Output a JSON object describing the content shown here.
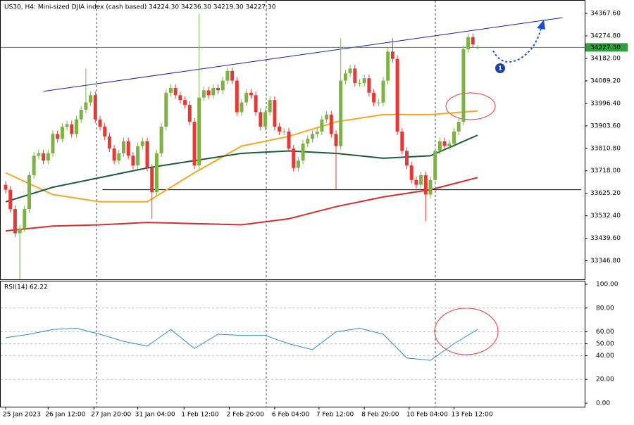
{
  "chart_data": {
    "type": "candlestick",
    "title": "US30, H4:  Mini-sized DJIA index (cash based)  34224.30 34236.30 34219.30 34227.30",
    "open": [
      33660,
      33640,
      33560,
      33460,
      33480,
      33560,
      33700,
      33780,
      33790,
      33760,
      33790,
      33870,
      33850,
      33900,
      33910,
      33870,
      33930,
      33970,
      34000,
      34030,
      33930,
      33900,
      33860,
      33810,
      33760,
      33790,
      33840,
      33780,
      33740,
      33820,
      33840,
      33730,
      33630,
      33790,
      33900,
      34040,
      34060,
      34030,
      34010,
      33990,
      33920,
      33740,
      34020,
      34050,
      34030,
      34060,
      34050,
      34090,
      34130,
      34090,
      33960,
      34000,
      34040,
      34030,
      33960,
      33900,
      33960,
      34010,
      33900,
      33880,
      33880,
      33810,
      33730,
      33760,
      33830,
      33850,
      33870,
      33880,
      33930,
      33950,
      33870,
      33820,
      34090,
      34120,
      34140,
      34080,
      34080,
      34100,
      34040,
      34000,
      34000,
      34090,
      34210,
      34180,
      33880,
      33800,
      33740,
      33680,
      33660,
      33700,
      33620,
      33680,
      33800,
      33840,
      33820,
      33830,
      33880,
      33920,
      34220,
      34270,
      34224.3
    ],
    "high": [
      33675,
      33655,
      33575,
      33495,
      33575,
      33715,
      33795,
      33805,
      33805,
      33805,
      33885,
      33885,
      33915,
      33925,
      33925,
      33945,
      33985,
      34140,
      34045,
      34045,
      33945,
      33915,
      33875,
      33825,
      33805,
      33855,
      33855,
      33795,
      33835,
      33855,
      33855,
      33745,
      33805,
      33915,
      34055,
      34075,
      34075,
      34045,
      34025,
      34005,
      33935,
      34367,
      34065,
      34065,
      34075,
      34075,
      34105,
      34145,
      34145,
      34105,
      34015,
      34055,
      34055,
      34045,
      33975,
      33975,
      34025,
      34025,
      33915,
      33895,
      33895,
      33825,
      33775,
      33845,
      33865,
      33885,
      33895,
      33945,
      33965,
      33965,
      33885,
      34265,
      34135,
      34155,
      34155,
      34095,
      34115,
      34115,
      34055,
      34015,
      34105,
      34225,
      34265,
      34195,
      33895,
      33815,
      33755,
      33695,
      33715,
      33715,
      33695,
      33815,
      33855,
      33855,
      33845,
      33895,
      33935,
      34235,
      34285,
      34285,
      34236.3
    ],
    "low": [
      33625,
      33545,
      33445,
      33270,
      33465,
      33545,
      33685,
      33765,
      33745,
      33745,
      33775,
      33835,
      33835,
      33885,
      33855,
      33855,
      33915,
      33955,
      33985,
      33915,
      33885,
      33845,
      33795,
      33745,
      33745,
      33775,
      33765,
      33725,
      33725,
      33805,
      33715,
      33520,
      33615,
      33775,
      33885,
      34025,
      34015,
      33995,
      33975,
      33905,
      33725,
      33725,
      34005,
      34015,
      34015,
      34035,
      34035,
      34075,
      34075,
      33945,
      33945,
      33985,
      34015,
      33945,
      33885,
      33885,
      33945,
      33885,
      33865,
      33865,
      33795,
      33715,
      33715,
      33745,
      33815,
      33835,
      33855,
      33865,
      33915,
      33855,
      33640,
      33805,
      34075,
      34105,
      34065,
      34065,
      34065,
      34025,
      33985,
      33985,
      33985,
      34075,
      34165,
      33865,
      33785,
      33725,
      33665,
      33645,
      33645,
      33510,
      33605,
      33665,
      33785,
      33805,
      33805,
      33815,
      33865,
      33905,
      34205,
      34225,
      34219.3
    ],
    "close": [
      33640,
      33560,
      33460,
      33480,
      33560,
      33700,
      33780,
      33790,
      33760,
      33790,
      33870,
      33850,
      33900,
      33910,
      33870,
      33930,
      33970,
      34000,
      34030,
      33930,
      33900,
      33860,
      33810,
      33760,
      33790,
      33840,
      33780,
      33740,
      33820,
      33840,
      33730,
      33630,
      33790,
      33900,
      34040,
      34060,
      34030,
      34010,
      33990,
      33920,
      33740,
      34020,
      34050,
      34030,
      34060,
      34050,
      34090,
      34130,
      34090,
      33960,
      34000,
      34040,
      34030,
      33960,
      33900,
      33960,
      34010,
      33900,
      33880,
      33880,
      33810,
      33730,
      33760,
      33830,
      33850,
      33870,
      33880,
      33930,
      33950,
      33870,
      33820,
      34090,
      34120,
      34140,
      34080,
      34080,
      34100,
      34040,
      34000,
      34000,
      34090,
      34210,
      34180,
      33880,
      33800,
      33740,
      33680,
      33660,
      33700,
      33620,
      33680,
      33800,
      33840,
      33820,
      33830,
      33880,
      33920,
      34220,
      34270,
      34240,
      34227.3
    ],
    "up_color": "#7cb342",
    "down_color": "#e53935",
    "ylim": [
      33270,
      34420
    ],
    "yticks": [
      {
        "value": 34367.6,
        "label": "34367.60"
      },
      {
        "value": 34274.8,
        "label": "34274.80"
      },
      {
        "value": 34182,
        "label": "34182.00"
      },
      {
        "value": 34089.2,
        "label": "34089.20"
      },
      {
        "value": 33996.4,
        "label": "33996.40"
      },
      {
        "value": 33903.6,
        "label": "33903.60"
      },
      {
        "value": 33810.8,
        "label": "33810.80"
      },
      {
        "value": 33718,
        "label": "33718.00"
      },
      {
        "value": 33625.2,
        "label": "33625.20"
      },
      {
        "value": 33532.4,
        "label": "33532.40"
      },
      {
        "value": 33439.6,
        "label": "33439.60"
      },
      {
        "value": 33346.8,
        "label": "33346.80"
      }
    ],
    "xticks": [
      {
        "value": 0,
        "label": "25 Jan 2023"
      },
      {
        "value": 9,
        "label": "26 Jan 12:00"
      },
      {
        "value": 18.7,
        "label": "27 Jan 20:00"
      },
      {
        "value": 28,
        "label": "31 Jan 04:00"
      },
      {
        "value": 37.8,
        "label": "1 Feb 12:00"
      },
      {
        "value": 47.4,
        "label": "2 Feb 20:00"
      },
      {
        "value": 57,
        "label": "6 Feb 04:00"
      },
      {
        "value": 66.4,
        "label": "7 Feb 12:00"
      },
      {
        "value": 76,
        "label": "8 Feb 20:00"
      },
      {
        "value": 85.5,
        "label": "10 Feb 04:00"
      },
      {
        "value": 95,
        "label": "13 Feb 12:00"
      }
    ],
    "current_price": {
      "value": 34227.3,
      "label": "34227.30"
    },
    "support": 33640,
    "trendline": {
      "x": [
        8,
        118
      ],
      "values": [
        34046,
        34350
      ]
    },
    "moving_averages": [
      {
        "color": "#f5a623",
        "x": [
          0,
          10,
          20,
          30,
          40,
          50,
          60,
          70,
          80,
          90,
          100
        ],
        "values": [
          33710,
          33620,
          33590,
          33590,
          33710,
          33820,
          33860,
          33920,
          33950,
          33950,
          33965
        ]
      },
      {
        "color": "#1e5a3c",
        "x": [
          0,
          10,
          20,
          30,
          40,
          50,
          60,
          70,
          80,
          90,
          100
        ],
        "values": [
          33590,
          33650,
          33690,
          33730,
          33760,
          33790,
          33800,
          33790,
          33770,
          33780,
          33865
        ]
      },
      {
        "color": "#d32f2f",
        "x": [
          0,
          10,
          20,
          30,
          40,
          50,
          60,
          70,
          80,
          90,
          100
        ],
        "values": [
          33470,
          33490,
          33495,
          33505,
          33500,
          33495,
          33520,
          33570,
          33610,
          33640,
          33690
        ]
      }
    ],
    "rsi": {
      "label": "RSI(14) 62.22",
      "color": "#2b8ccf",
      "x": [
        0,
        5,
        10,
        15,
        20,
        25,
        30,
        35,
        40,
        45,
        50,
        55,
        60,
        65,
        70,
        75,
        80,
        85,
        90,
        95,
        100
      ],
      "values": [
        55,
        58,
        62,
        63,
        58,
        52,
        48,
        62,
        46,
        58,
        57,
        57,
        50,
        45,
        60,
        63,
        58,
        38,
        36,
        50,
        62
      ],
      "ylim": [
        0,
        100
      ],
      "yticks": [
        {
          "value": 100,
          "label": "100.00"
        },
        {
          "value": 80,
          "label": "80.00"
        },
        {
          "value": 60,
          "label": "60.00"
        },
        {
          "value": 50,
          "label": "50.00"
        },
        {
          "value": 40,
          "label": "40.00"
        },
        {
          "value": 20,
          "label": "20.00"
        },
        {
          "value": 0,
          "label": "0.00"
        }
      ]
    },
    "annotation": "1"
  }
}
